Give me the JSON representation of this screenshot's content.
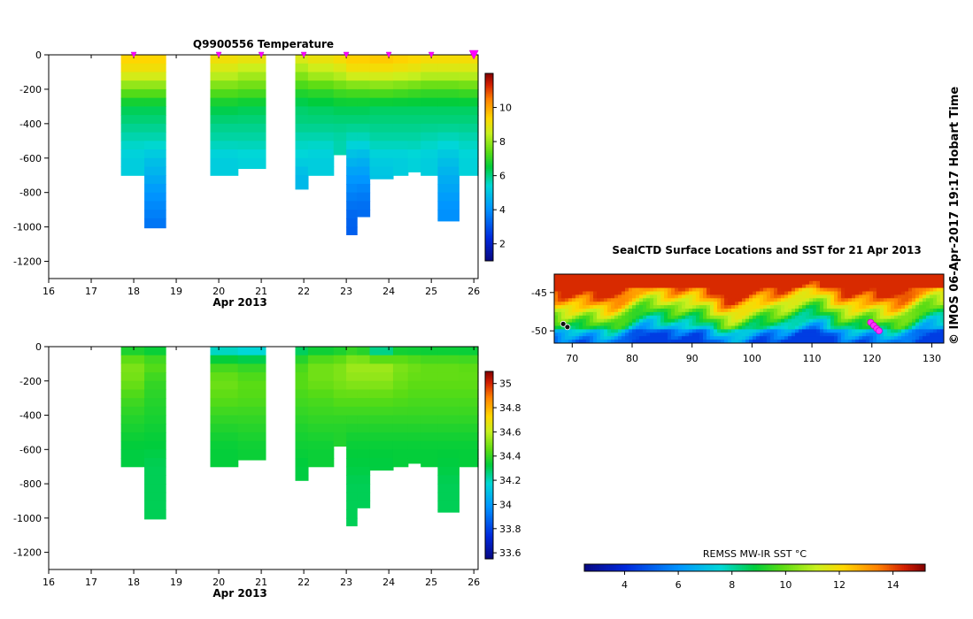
{
  "copyright": "© IMOS 06-Apr-2017 19:17 Hobart Time",
  "chart_data": [
    {
      "id": "temperature",
      "type": "heatmap",
      "title": "Q9900556  Temperature",
      "xlabel": "Apr 2013",
      "ylabel": "",
      "xlim": [
        16,
        26.1
      ],
      "ylim": [
        -1300,
        0
      ],
      "xticks": [
        16,
        17,
        18,
        19,
        20,
        21,
        22,
        23,
        24,
        25,
        26
      ],
      "yticks": [
        0,
        -200,
        -400,
        -600,
        -800,
        -1000,
        -1200
      ],
      "colorbar": {
        "min": 1,
        "max": 12,
        "ticks": [
          2,
          4,
          6,
          8,
          10
        ]
      },
      "profile_markers": [
        18,
        20,
        21,
        22,
        23,
        24,
        25,
        26
      ],
      "profiles": [
        {
          "x0": 17.7,
          "x1": 18.25,
          "depth": 700,
          "vals": [
            9.5,
            9.0,
            7.6,
            6.4,
            6.0,
            5.6,
            5.2
          ]
        },
        {
          "x0": 18.25,
          "x1": 18.75,
          "depth": 1005,
          "vals": [
            9.5,
            9.0,
            7.6,
            6.4,
            6.0,
            5.6,
            5.0,
            4.6,
            4.1,
            3.8,
            3.5
          ]
        },
        {
          "x0": 19.8,
          "x1": 20.45,
          "depth": 700,
          "vals": [
            9.3,
            8.6,
            7.5,
            6.5,
            6.0,
            5.7,
            5.2
          ]
        },
        {
          "x0": 20.45,
          "x1": 21.1,
          "depth": 660,
          "vals": [
            9.2,
            8.3,
            7.4,
            6.4,
            6.0,
            5.7,
            5.3
          ]
        },
        {
          "x0": 21.8,
          "x1": 22.1,
          "depth": 780,
          "vals": [
            9.0,
            8.0,
            7.0,
            6.2,
            6.0,
            5.6,
            5.3,
            4.8
          ]
        },
        {
          "x0": 22.1,
          "x1": 22.7,
          "depth": 700,
          "vals": [
            9.2,
            8.4,
            7.1,
            6.3,
            6.0,
            5.6,
            5.2
          ]
        },
        {
          "x0": 22.7,
          "x1": 23.0,
          "depth": 580,
          "vals": [
            9.4,
            8.6,
            7.3,
            6.4,
            6.0,
            5.7
          ]
        },
        {
          "x0": 23.0,
          "x1": 23.25,
          "depth": 1045,
          "vals": [
            9.6,
            9.0,
            7.4,
            6.4,
            6.0,
            5.5,
            4.8,
            4.2,
            3.8,
            3.4,
            3.2
          ]
        },
        {
          "x0": 23.25,
          "x1": 23.55,
          "depth": 940,
          "vals": [
            9.6,
            9.0,
            7.4,
            6.4,
            6.0,
            5.5,
            4.7,
            4.2,
            3.7,
            3.4
          ]
        },
        {
          "x0": 23.55,
          "x1": 24.1,
          "depth": 720,
          "vals": [
            9.7,
            9.0,
            7.5,
            6.3,
            6.0,
            5.7,
            5.2,
            5.0
          ]
        },
        {
          "x0": 24.1,
          "x1": 24.45,
          "depth": 700,
          "vals": [
            9.6,
            8.9,
            7.4,
            6.3,
            6.0,
            5.7,
            5.2
          ]
        },
        {
          "x0": 24.45,
          "x1": 24.75,
          "depth": 680,
          "vals": [
            9.5,
            8.8,
            7.3,
            6.3,
            6.0,
            5.7,
            5.3
          ]
        },
        {
          "x0": 24.75,
          "x1": 25.15,
          "depth": 700,
          "vals": [
            9.4,
            8.6,
            7.2,
            6.3,
            6.0,
            5.6,
            5.2
          ]
        },
        {
          "x0": 25.15,
          "x1": 25.65,
          "depth": 965,
          "vals": [
            9.4,
            8.6,
            7.2,
            6.3,
            6.0,
            5.5,
            5.0,
            4.6,
            4.3,
            4.0
          ]
        },
        {
          "x0": 25.65,
          "x1": 26.1,
          "depth": 700,
          "vals": [
            9.4,
            8.6,
            7.3,
            6.3,
            6.0,
            5.6,
            5.3
          ]
        }
      ]
    },
    {
      "id": "salinity",
      "type": "heatmap",
      "title": "",
      "xlabel": "Apr 2013",
      "ylabel": "",
      "xlim": [
        16,
        26.1
      ],
      "ylim": [
        -1300,
        0
      ],
      "xticks": [
        16,
        17,
        18,
        19,
        20,
        21,
        22,
        23,
        24,
        25,
        26
      ],
      "yticks": [
        0,
        -200,
        -400,
        -600,
        -800,
        -1000,
        -1200
      ],
      "colorbar": {
        "min": 33.55,
        "max": 35.1,
        "ticks": [
          33.6,
          33.8,
          34,
          34.2,
          34.4,
          34.6,
          34.8,
          35
        ]
      },
      "profiles": [
        {
          "x0": 17.7,
          "x1": 18.25,
          "depth": 700,
          "vals": [
            34.32,
            34.5,
            34.48,
            34.42,
            34.38,
            34.35,
            34.32
          ]
        },
        {
          "x0": 18.25,
          "x1": 18.75,
          "depth": 1005,
          "vals": [
            34.3,
            34.45,
            34.4,
            34.38,
            34.36,
            34.34,
            34.32,
            34.3,
            34.3,
            34.3,
            34.3
          ]
        },
        {
          "x0": 19.8,
          "x1": 20.45,
          "depth": 700,
          "vals": [
            34.12,
            34.4,
            34.48,
            34.45,
            34.4,
            34.36,
            34.33
          ]
        },
        {
          "x0": 20.45,
          "x1": 21.1,
          "depth": 660,
          "vals": [
            34.1,
            34.38,
            34.45,
            34.44,
            34.4,
            34.37,
            34.34
          ]
        },
        {
          "x0": 21.8,
          "x1": 22.1,
          "depth": 780,
          "vals": [
            34.25,
            34.42,
            34.45,
            34.42,
            34.39,
            34.36,
            34.34,
            34.32
          ]
        },
        {
          "x0": 22.1,
          "x1": 22.7,
          "depth": 700,
          "vals": [
            34.3,
            34.48,
            34.48,
            34.43,
            34.4,
            34.37,
            34.34
          ]
        },
        {
          "x0": 22.7,
          "x1": 23.0,
          "depth": 580,
          "vals": [
            34.32,
            34.5,
            34.5,
            34.45,
            34.4,
            34.37
          ]
        },
        {
          "x0": 23.0,
          "x1": 23.25,
          "depth": 1045,
          "vals": [
            34.35,
            34.55,
            34.52,
            34.45,
            34.4,
            34.36,
            34.33,
            34.32,
            34.3,
            34.3,
            34.3
          ]
        },
        {
          "x0": 23.25,
          "x1": 23.55,
          "depth": 940,
          "vals": [
            34.32,
            34.55,
            34.52,
            34.45,
            34.4,
            34.36,
            34.33,
            34.32,
            34.3,
            34.3
          ]
        },
        {
          "x0": 23.55,
          "x1": 24.1,
          "depth": 720,
          "vals": [
            34.15,
            34.55,
            34.52,
            34.45,
            34.4,
            34.36,
            34.33,
            34.32
          ]
        },
        {
          "x0": 24.1,
          "x1": 24.45,
          "depth": 700,
          "vals": [
            34.3,
            34.5,
            34.48,
            34.44,
            34.4,
            34.36,
            34.33
          ]
        },
        {
          "x0": 24.45,
          "x1": 24.75,
          "depth": 680,
          "vals": [
            34.3,
            34.48,
            34.46,
            34.43,
            34.4,
            34.36,
            34.33
          ]
        },
        {
          "x0": 24.75,
          "x1": 25.15,
          "depth": 700,
          "vals": [
            34.3,
            34.46,
            34.46,
            34.43,
            34.4,
            34.36,
            34.33
          ]
        },
        {
          "x0": 25.15,
          "x1": 25.65,
          "depth": 965,
          "vals": [
            34.3,
            34.46,
            34.46,
            34.43,
            34.4,
            34.36,
            34.33,
            34.32,
            34.3,
            34.3
          ]
        },
        {
          "x0": 25.65,
          "x1": 26.1,
          "depth": 700,
          "vals": [
            34.3,
            34.45,
            34.46,
            34.43,
            34.4,
            34.36,
            34.33
          ]
        }
      ]
    },
    {
      "id": "sst-map",
      "type": "heatmap",
      "title": "SealCTD Surface Locations and SST for 21 Apr 2013",
      "xlabel": "",
      "ylabel": "",
      "xlim": [
        67,
        132
      ],
      "ylim": [
        -51.6,
        -42.6
      ],
      "xticks": [
        70,
        80,
        90,
        100,
        110,
        120,
        130
      ],
      "yticks": [
        -45,
        -50
      ],
      "surface_locations": [
        {
          "lon": 119.8,
          "lat": -48.9
        },
        {
          "lon": 120.3,
          "lat": -49.3
        },
        {
          "lon": 120.8,
          "lat": -49.7
        },
        {
          "lon": 121.2,
          "lat": -50.0
        },
        {
          "lon": 68.5,
          "lat": -49.1
        },
        {
          "lon": 69.2,
          "lat": -49.5
        }
      ]
    },
    {
      "id": "sst-colorbar",
      "type": "heatmap",
      "title": "REMSS MW-IR SST °C",
      "xlabel": "",
      "ylabel": "",
      "xlim": [
        2.5,
        15.2
      ],
      "xticks": [
        4,
        6,
        8,
        10,
        12,
        14
      ]
    }
  ]
}
